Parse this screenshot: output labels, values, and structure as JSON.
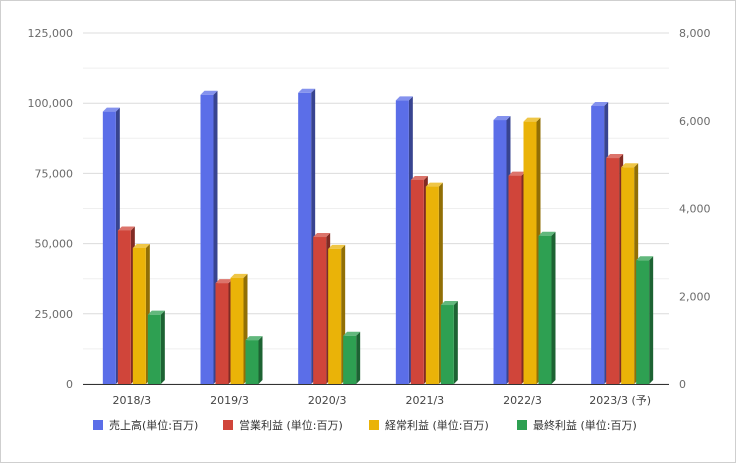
{
  "chart_data": {
    "type": "bar",
    "categories": [
      "2018/3",
      "2019/3",
      "2020/3",
      "2021/3",
      "2022/3",
      "2023/3 (予)"
    ],
    "series": [
      {
        "name": "売上高(単位:百万)",
        "axis": "left",
        "color": "#5b6ee8",
        "values": [
          97000,
          103000,
          103700,
          101000,
          94000,
          99000
        ]
      },
      {
        "name": "営業利益 (単位:百万)",
        "axis": "right",
        "color": "#d0453a",
        "values": [
          3500,
          2300,
          3350,
          4650,
          4750,
          5150
        ]
      },
      {
        "name": "経常利益 (単位:百万)",
        "axis": "right",
        "color": "#eab308",
        "values": [
          3100,
          2420,
          3080,
          4500,
          5980,
          4940
        ]
      },
      {
        "name": "最終利益 (単位:百万)",
        "axis": "right",
        "color": "#2ea052",
        "values": [
          1580,
          1000,
          1100,
          1800,
          3380,
          2820
        ]
      }
    ],
    "y_left": {
      "min": 0,
      "max": 125000,
      "ticks": [
        "0",
        "25,000",
        "50,000",
        "75,000",
        "100,000",
        "125,000"
      ]
    },
    "y_right": {
      "min": 0,
      "max": 8000,
      "ticks": [
        "0",
        "2,000",
        "4,000",
        "6,000",
        "8,000"
      ]
    },
    "grid": true,
    "legend": "bottom"
  }
}
